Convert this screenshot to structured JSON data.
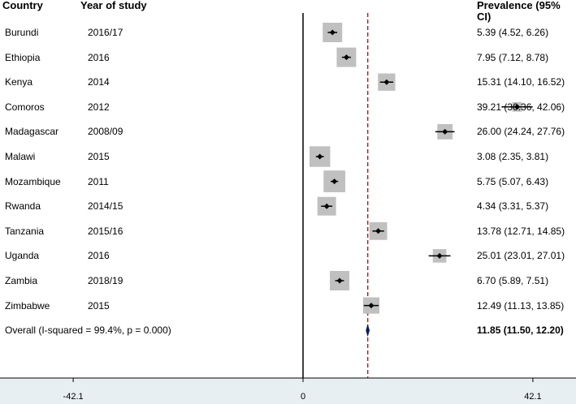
{
  "headers": {
    "country": "Country",
    "year": "Year of study",
    "prevalence": "Prevalence (95% CI)"
  },
  "chart_data": {
    "type": "forest",
    "xlim": [
      -50,
      50
    ],
    "xticks": [
      -42.1,
      0,
      42.1
    ],
    "xtick_labels": [
      "-42.1",
      "0",
      "42.1"
    ],
    "reference_line": 0,
    "pooled_line": 11.85,
    "rows": [
      {
        "country": "Burundi",
        "year": "2016/17",
        "estimate": 5.39,
        "lower": 4.52,
        "upper": 6.26,
        "weight": 1.0,
        "ci_text": "5.39 (4.52, 6.26)"
      },
      {
        "country": "Ethiopia",
        "year": "2016",
        "estimate": 7.95,
        "lower": 7.12,
        "upper": 8.78,
        "weight": 1.0,
        "ci_text": "7.95 (7.12, 8.78)"
      },
      {
        "country": "Kenya",
        "year": "2014",
        "estimate": 15.31,
        "lower": 14.1,
        "upper": 16.52,
        "weight": 0.75,
        "ci_text": "15.31 (14.10, 16.52)"
      },
      {
        "country": "Comoros",
        "year": "2012",
        "estimate": 39.21,
        "lower": 36.36,
        "upper": 42.06,
        "weight": 0.15,
        "ci_text": "39.21 (36.36, 42.06)"
      },
      {
        "country": "Madagascar",
        "year": "2008/09",
        "estimate": 26.0,
        "lower": 24.24,
        "upper": 27.76,
        "weight": 0.55,
        "ci_text": "26.00 (24.24, 27.76)"
      },
      {
        "country": "Malawi",
        "year": "2015",
        "estimate": 3.08,
        "lower": 2.35,
        "upper": 3.81,
        "weight": 1.15,
        "ci_text": "3.08 (2.35, 3.81)"
      },
      {
        "country": "Mozambique",
        "year": "2011",
        "estimate": 5.75,
        "lower": 5.07,
        "upper": 6.43,
        "weight": 1.3,
        "ci_text": "5.75 (5.07, 6.43)"
      },
      {
        "country": "Rwanda",
        "year": "2014/15",
        "estimate": 4.34,
        "lower": 3.31,
        "upper": 5.37,
        "weight": 0.9,
        "ci_text": "4.34 (3.31, 5.37)"
      },
      {
        "country": "Tanzania",
        "year": "2015/16",
        "estimate": 13.78,
        "lower": 12.71,
        "upper": 14.85,
        "weight": 0.8,
        "ci_text": "13.78 (12.71, 14.85)"
      },
      {
        "country": "Uganda",
        "year": "2016",
        "estimate": 25.01,
        "lower": 23.01,
        "upper": 27.01,
        "weight": 0.4,
        "ci_text": "25.01 (23.01, 27.01)"
      },
      {
        "country": "Zambia",
        "year": "2018/19",
        "estimate": 6.7,
        "lower": 5.89,
        "upper": 7.51,
        "weight": 1.0,
        "ci_text": "6.70 (5.89, 7.51)"
      },
      {
        "country": "Zimbabwe",
        "year": "2015",
        "estimate": 12.49,
        "lower": 11.13,
        "upper": 13.85,
        "weight": 0.65,
        "ci_text": "12.49 (11.13, 13.85)"
      }
    ],
    "overall": {
      "label": "Overall  (I-squared = 99.4%, p = 0.000)",
      "estimate": 11.85,
      "lower": 11.5,
      "upper": 12.2,
      "ci_text": "11.85 (11.50, 12.20)"
    },
    "colors": {
      "box": "#c0c0c0",
      "point": "#000000",
      "pooled_line": "#b22222",
      "diamond": "#0a1a5c",
      "axis_band": "#e8eff2"
    }
  }
}
